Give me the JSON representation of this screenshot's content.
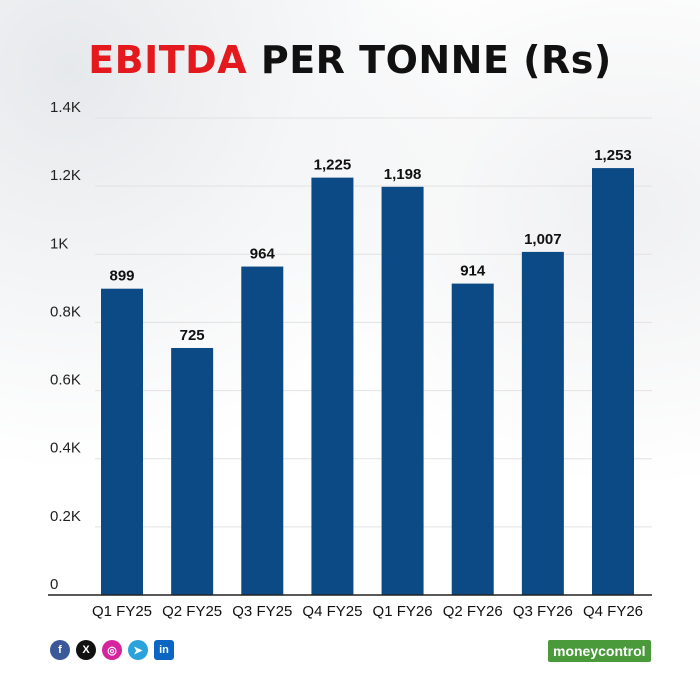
{
  "title": {
    "highlight": "EBITDA",
    "rest": " PER TONNE (Rs)"
  },
  "colors": {
    "bar": "#0b4a85",
    "highlight": "#e3191e",
    "brand": "#4a9a3c"
  },
  "footer": {
    "social_icons": [
      "facebook-icon",
      "x-icon",
      "instagram-icon",
      "telegram-icon",
      "linkedin-icon"
    ],
    "brand": "moneycontrol"
  },
  "chart_data": {
    "type": "bar",
    "title": "EBITDA PER TONNE (Rs)",
    "categories": [
      "Q1 FY25",
      "Q2 FY25",
      "Q3 FY25",
      "Q4 FY25",
      "Q1 FY26",
      "Q2 FY26",
      "Q3 FY26",
      "Q4 FY26"
    ],
    "values": [
      899,
      725,
      964,
      1225,
      1198,
      914,
      1007,
      1253
    ],
    "value_labels": [
      "899",
      "725",
      "964",
      "1,225",
      "1,198",
      "914",
      "1,007",
      "1,253"
    ],
    "ylim": [
      0,
      1400
    ],
    "yticks": [
      0,
      200,
      400,
      600,
      800,
      1000,
      1200,
      1400
    ],
    "ytick_labels": [
      "0",
      "0.2K",
      "0.4K",
      "0.6K",
      "0.8K",
      "1K",
      "1.2K",
      "1.4K"
    ],
    "xlabel": "",
    "ylabel": "",
    "grid": true,
    "legend": "none"
  }
}
